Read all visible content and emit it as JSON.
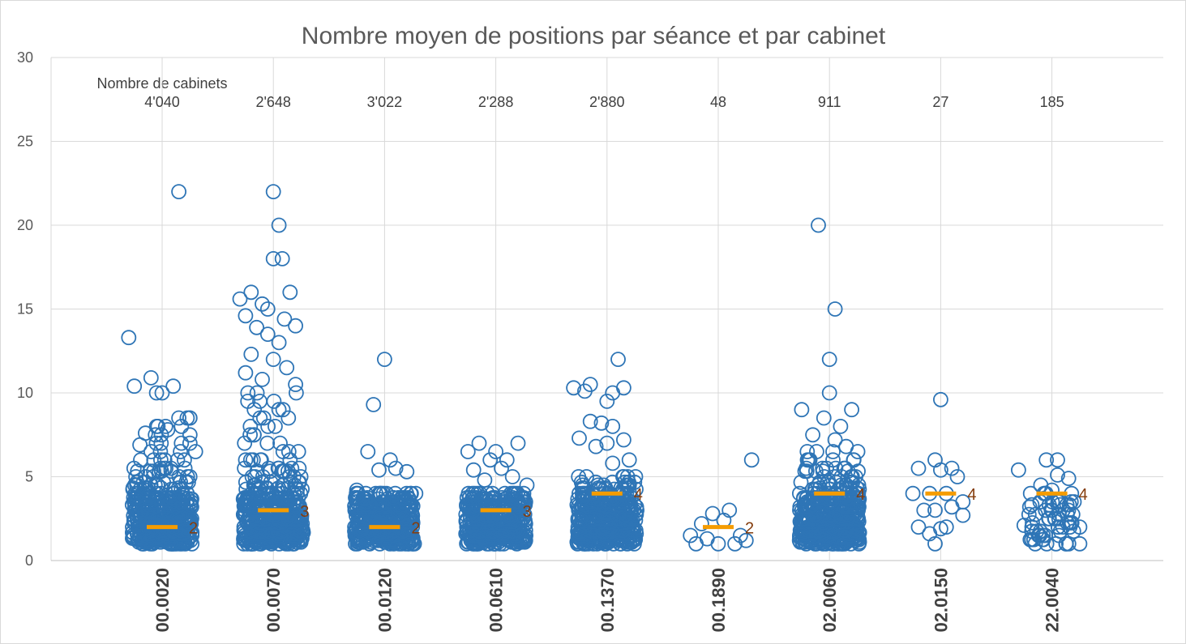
{
  "chart_data": {
    "type": "scatter",
    "title": "Nombre moyen de positions par séance et par cabinet",
    "count_header": "Nombre de cabinets",
    "ylim": [
      0,
      30
    ],
    "yticks": [
      "0",
      "5",
      "10",
      "15",
      "20",
      "25",
      "30"
    ],
    "grid": true,
    "colors": {
      "points": "#2e75b6",
      "median": "#f59c00",
      "median_label": "#843c0c",
      "grid": "#d9d9d9"
    },
    "categories": [
      {
        "label": "00.0020",
        "count": "4'040",
        "median": 2,
        "median_label": "2",
        "max": 8.5,
        "outliers": [
          [
            0.15,
            22
          ],
          [
            -0.3,
            13.3
          ],
          [
            -0.1,
            10.9
          ],
          [
            -0.25,
            10.4
          ],
          [
            0.1,
            10.4
          ],
          [
            0.0,
            10.0
          ],
          [
            -0.05,
            10.0
          ],
          [
            0.15,
            8.5
          ],
          [
            -0.05,
            8.0
          ],
          [
            0.05,
            7.8
          ],
          [
            -0.15,
            7.6
          ],
          [
            0.25,
            7.0
          ],
          [
            -0.2,
            6.9
          ],
          [
            0.3,
            6.5
          ]
        ]
      },
      {
        "label": "00.0070",
        "count": "2'648",
        "median": 3,
        "median_label": "3",
        "max": 10,
        "outliers": [
          [
            0.0,
            22
          ],
          [
            0.05,
            20
          ],
          [
            0.0,
            18
          ],
          [
            0.08,
            18
          ],
          [
            -0.2,
            16
          ],
          [
            0.15,
            16
          ],
          [
            -0.3,
            15.6
          ],
          [
            -0.1,
            15.3
          ],
          [
            -0.05,
            15.0
          ],
          [
            -0.25,
            14.6
          ],
          [
            0.1,
            14.4
          ],
          [
            0.2,
            14.0
          ],
          [
            -0.15,
            13.9
          ],
          [
            -0.05,
            13.5
          ],
          [
            0.05,
            13.0
          ],
          [
            -0.2,
            12.3
          ],
          [
            0.0,
            12.0
          ],
          [
            0.12,
            11.5
          ],
          [
            -0.25,
            11.2
          ],
          [
            0.2,
            10.5
          ],
          [
            -0.1,
            10.8
          ]
        ]
      },
      {
        "label": "00.0120",
        "count": "3'022",
        "median": 2,
        "median_label": "2",
        "max": 4,
        "outliers": [
          [
            0.0,
            12
          ],
          [
            -0.1,
            9.3
          ],
          [
            -0.15,
            6.5
          ],
          [
            0.05,
            6.0
          ],
          [
            0.1,
            5.5
          ],
          [
            -0.05,
            5.4
          ],
          [
            0.2,
            5.3
          ],
          [
            -0.25,
            4.2
          ],
          [
            0.28,
            4.0
          ]
        ]
      },
      {
        "label": "00.0610",
        "count": "2'288",
        "median": 3,
        "median_label": "3",
        "max": 4,
        "outliers": [
          [
            -0.15,
            7.0
          ],
          [
            0.2,
            7.0
          ],
          [
            0.0,
            6.5
          ],
          [
            -0.25,
            6.5
          ],
          [
            -0.05,
            6.0
          ],
          [
            0.1,
            6.0
          ],
          [
            0.05,
            5.5
          ],
          [
            -0.2,
            5.4
          ],
          [
            0.15,
            5.0
          ],
          [
            -0.1,
            4.8
          ],
          [
            0.28,
            4.5
          ]
        ]
      },
      {
        "label": "00.1370",
        "count": "2'880",
        "median": 4,
        "median_label": "4",
        "max": 5,
        "outliers": [
          [
            0.1,
            12
          ],
          [
            -0.3,
            10.3
          ],
          [
            -0.15,
            10.5
          ],
          [
            0.15,
            10.3
          ],
          [
            -0.2,
            10.1
          ],
          [
            0.05,
            10.0
          ],
          [
            0.0,
            9.5
          ],
          [
            -0.15,
            8.3
          ],
          [
            -0.05,
            8.2
          ],
          [
            0.05,
            8.0
          ],
          [
            -0.25,
            7.3
          ],
          [
            0.15,
            7.2
          ],
          [
            0.0,
            7.0
          ],
          [
            -0.1,
            6.8
          ],
          [
            0.2,
            6.0
          ],
          [
            0.05,
            5.8
          ]
        ]
      },
      {
        "label": "00.1890",
        "count": "48",
        "median": 2,
        "median_label": "2",
        "max": 2.5,
        "outliers": [
          [
            0.3,
            6.0
          ],
          [
            0.1,
            3.0
          ],
          [
            -0.05,
            2.8
          ],
          [
            -0.2,
            1.0
          ],
          [
            0.25,
            1.2
          ],
          [
            0.15,
            1.0
          ],
          [
            -0.1,
            1.3
          ],
          [
            0.0,
            1.0
          ],
          [
            -0.25,
            1.5
          ],
          [
            0.2,
            1.5
          ],
          [
            0.05,
            2.4
          ],
          [
            -0.15,
            2.2
          ]
        ]
      },
      {
        "label": "02.0060",
        "count": "911",
        "median": 4,
        "median_label": "4",
        "max": 6.5,
        "outliers": [
          [
            -0.1,
            20
          ],
          [
            0.05,
            15
          ],
          [
            0.0,
            12
          ],
          [
            0.0,
            10
          ],
          [
            -0.25,
            9.0
          ],
          [
            0.2,
            9.0
          ],
          [
            -0.05,
            8.5
          ],
          [
            0.1,
            8.0
          ],
          [
            -0.15,
            7.5
          ],
          [
            0.05,
            7.2
          ],
          [
            -0.2,
            6.5
          ],
          [
            0.15,
            6.8
          ]
        ]
      },
      {
        "label": "02.0150",
        "count": "27",
        "median": 4,
        "median_label": "4",
        "max": 6,
        "outliers": [
          [
            0.0,
            9.6
          ],
          [
            -0.05,
            6.0
          ],
          [
            0.1,
            5.5
          ],
          [
            0.0,
            5.4
          ],
          [
            -0.2,
            5.5
          ],
          [
            0.15,
            5.0
          ],
          [
            -0.1,
            4.0
          ],
          [
            0.05,
            4.0
          ],
          [
            -0.25,
            4.0
          ],
          [
            0.2,
            3.5
          ],
          [
            -0.15,
            3.0
          ],
          [
            0.1,
            3.2
          ],
          [
            -0.05,
            3.0
          ],
          [
            0.2,
            2.7
          ],
          [
            -0.2,
            2.0
          ],
          [
            0.05,
            2.0
          ],
          [
            -0.1,
            1.6
          ],
          [
            0.0,
            1.9
          ],
          [
            -0.05,
            1.0
          ]
        ]
      },
      {
        "label": "22.0040",
        "count": "185",
        "median": 4,
        "median_label": "4",
        "max": 4,
        "outliers": [
          [
            -0.05,
            6.0
          ],
          [
            0.05,
            6.0
          ],
          [
            -0.3,
            5.4
          ],
          [
            0.05,
            5.1
          ],
          [
            0.15,
            4.9
          ],
          [
            -0.1,
            4.5
          ],
          [
            0.0,
            4.2
          ],
          [
            0.2,
            3.5
          ],
          [
            -0.2,
            3.2
          ],
          [
            0.1,
            3.0
          ],
          [
            -0.25,
            2.1
          ],
          [
            0.25,
            2.0
          ],
          [
            -0.15,
            1.0
          ],
          [
            0.25,
            1.0
          ]
        ]
      }
    ]
  }
}
